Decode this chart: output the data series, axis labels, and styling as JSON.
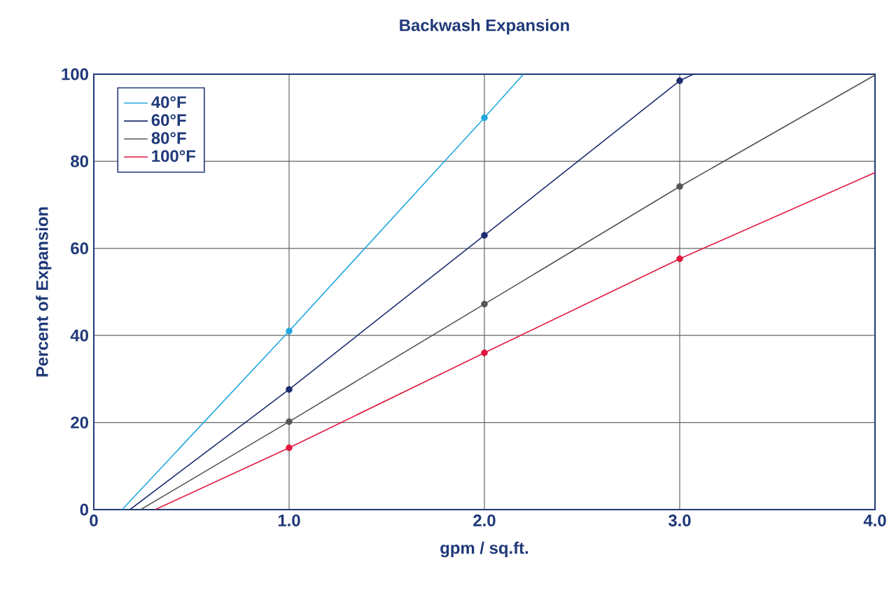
{
  "chart_data": {
    "type": "line",
    "title": "Backwash Expansion",
    "xlabel": "gpm / sq.ft.",
    "ylabel": "Percent of Expansion",
    "xlim": [
      0,
      4
    ],
    "ylim": [
      0,
      100
    ],
    "xticks": [
      0,
      {
        "value": 1,
        "label": "1.0"
      },
      {
        "value": 2,
        "label": "2.0"
      },
      {
        "value": 3,
        "label": "3.0"
      },
      {
        "value": 4,
        "label": "4.0"
      }
    ],
    "yticks": [
      0,
      20,
      40,
      60,
      80,
      100
    ],
    "grid": true,
    "legend": "top left",
    "line_style": "solid",
    "series": [
      {
        "name": "40°F",
        "color": "#22a8df",
        "marker": "none",
        "x": [
          0.145,
          1,
          2,
          2.2
        ],
        "values": [
          0,
          41,
          90,
          100
        ]
      },
      {
        "name": "60°F",
        "color": "#1c2d6e",
        "marker": "none",
        "x": [
          0.185,
          1,
          2,
          3,
          3.07
        ],
        "values": [
          0,
          27.6,
          63,
          98.5,
          100
        ]
      },
      {
        "name": "80°F",
        "color": "#555555",
        "marker": "none",
        "x": [
          0.24,
          1,
          2,
          3,
          4
        ],
        "values": [
          0,
          20.2,
          47.2,
          74.2,
          99.8
        ]
      },
      {
        "name": "100°F",
        "color": "#e0183f",
        "marker": "none",
        "x": [
          0.315,
          1,
          2,
          3,
          4
        ],
        "values": [
          0,
          14.2,
          36,
          57.6,
          77.4
        ]
      },
      {
        "color": "#22a8df",
        "type": "scatter",
        "marker": "circle",
        "x": [
          1,
          2
        ],
        "values": [
          41,
          90
        ]
      },
      {
        "color": "#1c2d6e",
        "type": "scatter",
        "marker": "circle",
        "x": [
          1,
          2,
          3
        ],
        "values": [
          27.6,
          63,
          98.5
        ]
      },
      {
        "color": "#555555",
        "type": "scatter",
        "marker": "circle",
        "x": [
          1,
          2,
          3
        ],
        "values": [
          20.2,
          47.2,
          74.2
        ]
      },
      {
        "color": "#e0183f",
        "type": "scatter",
        "marker": "circle",
        "x": [
          1,
          2,
          3
        ],
        "values": [
          14.2,
          36,
          57.6
        ]
      }
    ]
  }
}
